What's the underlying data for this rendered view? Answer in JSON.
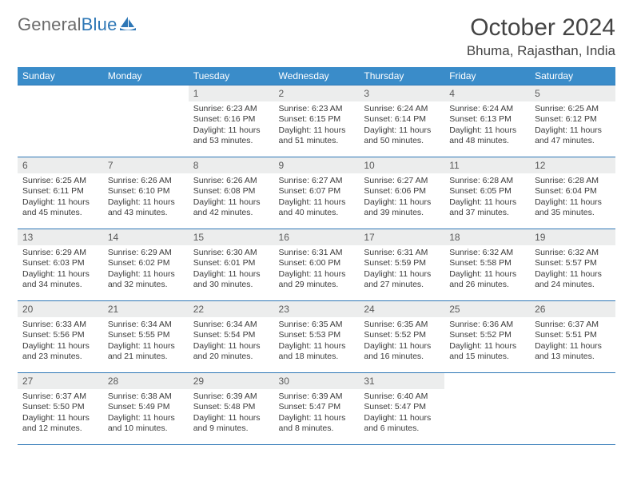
{
  "logo": {
    "text1": "General",
    "text2": "Blue"
  },
  "title": "October 2024",
  "location": "Bhuma, Rajasthan, India",
  "colors": {
    "header_bg": "#3a8cc9",
    "header_text": "#ffffff",
    "rule": "#2e77b6",
    "daynum_bg": "#eceded",
    "body_text": "#3b3b3b",
    "logo_gray": "#6b6b6b",
    "logo_blue": "#2e77b6"
  },
  "day_headers": [
    "Sunday",
    "Monday",
    "Tuesday",
    "Wednesday",
    "Thursday",
    "Friday",
    "Saturday"
  ],
  "weeks": [
    [
      null,
      null,
      {
        "n": "1",
        "sr": "6:23 AM",
        "ss": "6:16 PM",
        "dl": "11 hours and 53 minutes."
      },
      {
        "n": "2",
        "sr": "6:23 AM",
        "ss": "6:15 PM",
        "dl": "11 hours and 51 minutes."
      },
      {
        "n": "3",
        "sr": "6:24 AM",
        "ss": "6:14 PM",
        "dl": "11 hours and 50 minutes."
      },
      {
        "n": "4",
        "sr": "6:24 AM",
        "ss": "6:13 PM",
        "dl": "11 hours and 48 minutes."
      },
      {
        "n": "5",
        "sr": "6:25 AM",
        "ss": "6:12 PM",
        "dl": "11 hours and 47 minutes."
      }
    ],
    [
      {
        "n": "6",
        "sr": "6:25 AM",
        "ss": "6:11 PM",
        "dl": "11 hours and 45 minutes."
      },
      {
        "n": "7",
        "sr": "6:26 AM",
        "ss": "6:10 PM",
        "dl": "11 hours and 43 minutes."
      },
      {
        "n": "8",
        "sr": "6:26 AM",
        "ss": "6:08 PM",
        "dl": "11 hours and 42 minutes."
      },
      {
        "n": "9",
        "sr": "6:27 AM",
        "ss": "6:07 PM",
        "dl": "11 hours and 40 minutes."
      },
      {
        "n": "10",
        "sr": "6:27 AM",
        "ss": "6:06 PM",
        "dl": "11 hours and 39 minutes."
      },
      {
        "n": "11",
        "sr": "6:28 AM",
        "ss": "6:05 PM",
        "dl": "11 hours and 37 minutes."
      },
      {
        "n": "12",
        "sr": "6:28 AM",
        "ss": "6:04 PM",
        "dl": "11 hours and 35 minutes."
      }
    ],
    [
      {
        "n": "13",
        "sr": "6:29 AM",
        "ss": "6:03 PM",
        "dl": "11 hours and 34 minutes."
      },
      {
        "n": "14",
        "sr": "6:29 AM",
        "ss": "6:02 PM",
        "dl": "11 hours and 32 minutes."
      },
      {
        "n": "15",
        "sr": "6:30 AM",
        "ss": "6:01 PM",
        "dl": "11 hours and 30 minutes."
      },
      {
        "n": "16",
        "sr": "6:31 AM",
        "ss": "6:00 PM",
        "dl": "11 hours and 29 minutes."
      },
      {
        "n": "17",
        "sr": "6:31 AM",
        "ss": "5:59 PM",
        "dl": "11 hours and 27 minutes."
      },
      {
        "n": "18",
        "sr": "6:32 AM",
        "ss": "5:58 PM",
        "dl": "11 hours and 26 minutes."
      },
      {
        "n": "19",
        "sr": "6:32 AM",
        "ss": "5:57 PM",
        "dl": "11 hours and 24 minutes."
      }
    ],
    [
      {
        "n": "20",
        "sr": "6:33 AM",
        "ss": "5:56 PM",
        "dl": "11 hours and 23 minutes."
      },
      {
        "n": "21",
        "sr": "6:34 AM",
        "ss": "5:55 PM",
        "dl": "11 hours and 21 minutes."
      },
      {
        "n": "22",
        "sr": "6:34 AM",
        "ss": "5:54 PM",
        "dl": "11 hours and 20 minutes."
      },
      {
        "n": "23",
        "sr": "6:35 AM",
        "ss": "5:53 PM",
        "dl": "11 hours and 18 minutes."
      },
      {
        "n": "24",
        "sr": "6:35 AM",
        "ss": "5:52 PM",
        "dl": "11 hours and 16 minutes."
      },
      {
        "n": "25",
        "sr": "6:36 AM",
        "ss": "5:52 PM",
        "dl": "11 hours and 15 minutes."
      },
      {
        "n": "26",
        "sr": "6:37 AM",
        "ss": "5:51 PM",
        "dl": "11 hours and 13 minutes."
      }
    ],
    [
      {
        "n": "27",
        "sr": "6:37 AM",
        "ss": "5:50 PM",
        "dl": "11 hours and 12 minutes."
      },
      {
        "n": "28",
        "sr": "6:38 AM",
        "ss": "5:49 PM",
        "dl": "11 hours and 10 minutes."
      },
      {
        "n": "29",
        "sr": "6:39 AM",
        "ss": "5:48 PM",
        "dl": "11 hours and 9 minutes."
      },
      {
        "n": "30",
        "sr": "6:39 AM",
        "ss": "5:47 PM",
        "dl": "11 hours and 8 minutes."
      },
      {
        "n": "31",
        "sr": "6:40 AM",
        "ss": "5:47 PM",
        "dl": "11 hours and 6 minutes."
      },
      null,
      null
    ]
  ],
  "labels": {
    "sunrise": "Sunrise:",
    "sunset": "Sunset:",
    "daylight": "Daylight:"
  }
}
